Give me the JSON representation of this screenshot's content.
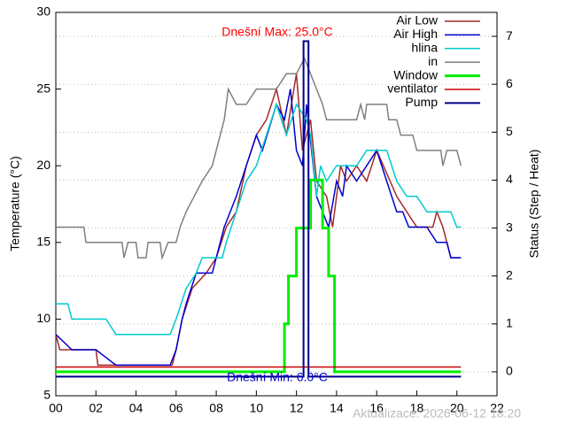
{
  "chart_data": {
    "type": "line",
    "y_label": "Temperature (°C)",
    "y2_label": "Status (Step / Heat)",
    "annotations": [
      "Dnešní Max: 25.0°C",
      "Dnešní Min: 6.0°C",
      "Aktualizace: 2026-06-12 18:20"
    ],
    "xlim": [
      0,
      22
    ],
    "xticks": [
      {
        "value": 0,
        "label": "00"
      },
      {
        "value": 2,
        "label": "02"
      },
      {
        "value": 4,
        "label": "04"
      },
      {
        "value": 6,
        "label": "06"
      },
      {
        "value": 8,
        "label": "08"
      },
      {
        "value": 10,
        "label": "10"
      },
      {
        "value": 12,
        "label": "12"
      },
      {
        "value": 14,
        "label": "14"
      },
      {
        "value": 16,
        "label": "16"
      },
      {
        "value": 18,
        "label": "18"
      },
      {
        "value": 20,
        "label": "20"
      },
      {
        "value": 22,
        "label": "22"
      }
    ],
    "ylim": [
      5,
      30
    ],
    "yticks": [
      5,
      10,
      15,
      20,
      25,
      30
    ],
    "y2lim": [
      -0.5,
      7.5
    ],
    "y2ticks": [
      0,
      1,
      2,
      3,
      4,
      5,
      6,
      7
    ],
    "grid": true,
    "series": [
      {
        "name": "Air Low",
        "color": "#a52a2a",
        "width": 1.5,
        "x": [
          0,
          0.2,
          2,
          2.1,
          5.8,
          6,
          6.3,
          6.8,
          7.5,
          8,
          8.5,
          9,
          9.5,
          10,
          10.5,
          11,
          11.5,
          12,
          12.3,
          12.7,
          13,
          13.5,
          13.8,
          14.2,
          14.5,
          15,
          15.5,
          16,
          17,
          17.5,
          18,
          18.8,
          19,
          19.3,
          19.7,
          20.2
        ],
        "values": [
          9,
          8,
          8,
          7,
          7,
          8,
          10,
          12,
          13,
          14,
          16,
          17,
          20,
          22,
          23,
          25,
          22,
          26,
          21,
          23,
          19,
          18,
          16,
          20,
          19,
          20,
          19,
          21,
          18,
          17,
          16,
          16,
          17,
          16,
          14,
          14
        ]
      },
      {
        "name": "Air High",
        "color": "#0000cd",
        "width": 1.5,
        "x": [
          0,
          0.8,
          2,
          3,
          5.7,
          6,
          6.3,
          6.5,
          7,
          7.8,
          8,
          8.4,
          9,
          9.5,
          10,
          10.3,
          11,
          11.4,
          11.7,
          12,
          12.3,
          12.5,
          13,
          13.3,
          13.6,
          14,
          14.3,
          14.5,
          15,
          15.5,
          16,
          16.5,
          17,
          17.3,
          17.6,
          18,
          18.5,
          19,
          19.5,
          19.7,
          20.2
        ],
        "values": [
          9,
          8,
          8,
          7,
          7,
          8,
          10,
          11,
          13,
          13,
          14,
          16,
          18,
          20,
          22,
          21,
          24,
          23,
          25,
          21,
          20,
          24,
          18,
          17,
          16,
          19,
          18,
          20,
          19,
          20,
          21,
          19,
          17,
          17,
          16,
          16,
          16,
          15,
          15,
          14,
          14
        ]
      },
      {
        "name": "hlina",
        "color": "#00cccc",
        "width": 1.5,
        "x": [
          0,
          0.6,
          0.8,
          2.5,
          3,
          5.7,
          6,
          6.5,
          7,
          7.3,
          8.3,
          8.5,
          9,
          9.5,
          10,
          10.5,
          11,
          11.5,
          12,
          12.5,
          12.7,
          13,
          13.2,
          13.5,
          14,
          15,
          15.5,
          16.5,
          17,
          17.5,
          18,
          18.5,
          19.7,
          20,
          20.2
        ],
        "values": [
          11,
          11,
          10,
          10,
          9,
          9,
          10,
          12,
          13,
          14,
          14,
          15,
          17,
          19,
          20,
          22,
          24,
          22,
          24,
          23,
          22,
          18,
          20,
          19,
          20,
          20,
          21,
          21,
          19,
          18,
          18,
          17,
          17,
          16,
          16
        ]
      },
      {
        "name": "in",
        "color": "#808080",
        "width": 1.5,
        "x": [
          0,
          1.4,
          1.5,
          3.3,
          3.4,
          3.6,
          4.0,
          4.1,
          4.5,
          4.6,
          5.2,
          5.3,
          5.6,
          6.0,
          6.2,
          6.5,
          6.9,
          7.3,
          7.8,
          8.0,
          8.4,
          8.6,
          9.0,
          9.5,
          10,
          11,
          11.5,
          12,
          12.4,
          12.7,
          13,
          13.3,
          13.5,
          15,
          15.2,
          15.4,
          15.5,
          16.5,
          16.6,
          17,
          17.2,
          17.8,
          18,
          19.2,
          19.3,
          19.5,
          20,
          20.2
        ],
        "values": [
          16,
          16,
          15,
          15,
          14,
          15,
          15,
          14,
          14,
          15,
          15,
          14,
          15,
          15,
          16,
          17,
          18,
          19,
          20,
          21,
          23,
          25,
          24,
          24,
          25,
          25,
          26,
          26,
          27,
          26,
          25,
          24,
          23,
          23,
          24,
          23,
          24,
          24,
          23,
          23,
          22,
          22,
          21,
          21,
          20,
          21,
          21,
          20
        ]
      },
      {
        "name": "Window",
        "color": "#00ee00",
        "width": 3,
        "axis": "y2",
        "x": [
          0,
          11.4,
          11.4,
          11.6,
          11.6,
          12.0,
          12.0,
          12.7,
          12.7,
          13.3,
          13.3,
          13.6,
          13.6,
          13.9,
          13.9,
          20.2
        ],
        "values": [
          0,
          0,
          1,
          1,
          2,
          2,
          3,
          3,
          4,
          4,
          3,
          3,
          2,
          2,
          0,
          0
        ]
      },
      {
        "name": "ventilator",
        "color": "#cc0000",
        "width": 1.5,
        "axis": "y2",
        "x": [
          0,
          20.2
        ],
        "values": [
          0.1,
          0.1
        ]
      },
      {
        "name": "Pump",
        "color": "#00008b",
        "width": 2,
        "axis": "y2",
        "x": [
          0,
          12.35,
          12.35,
          12.6,
          12.6,
          20.2
        ],
        "values": [
          -0.1,
          -0.1,
          6.9,
          6.9,
          -0.1,
          -0.1
        ]
      }
    ]
  }
}
